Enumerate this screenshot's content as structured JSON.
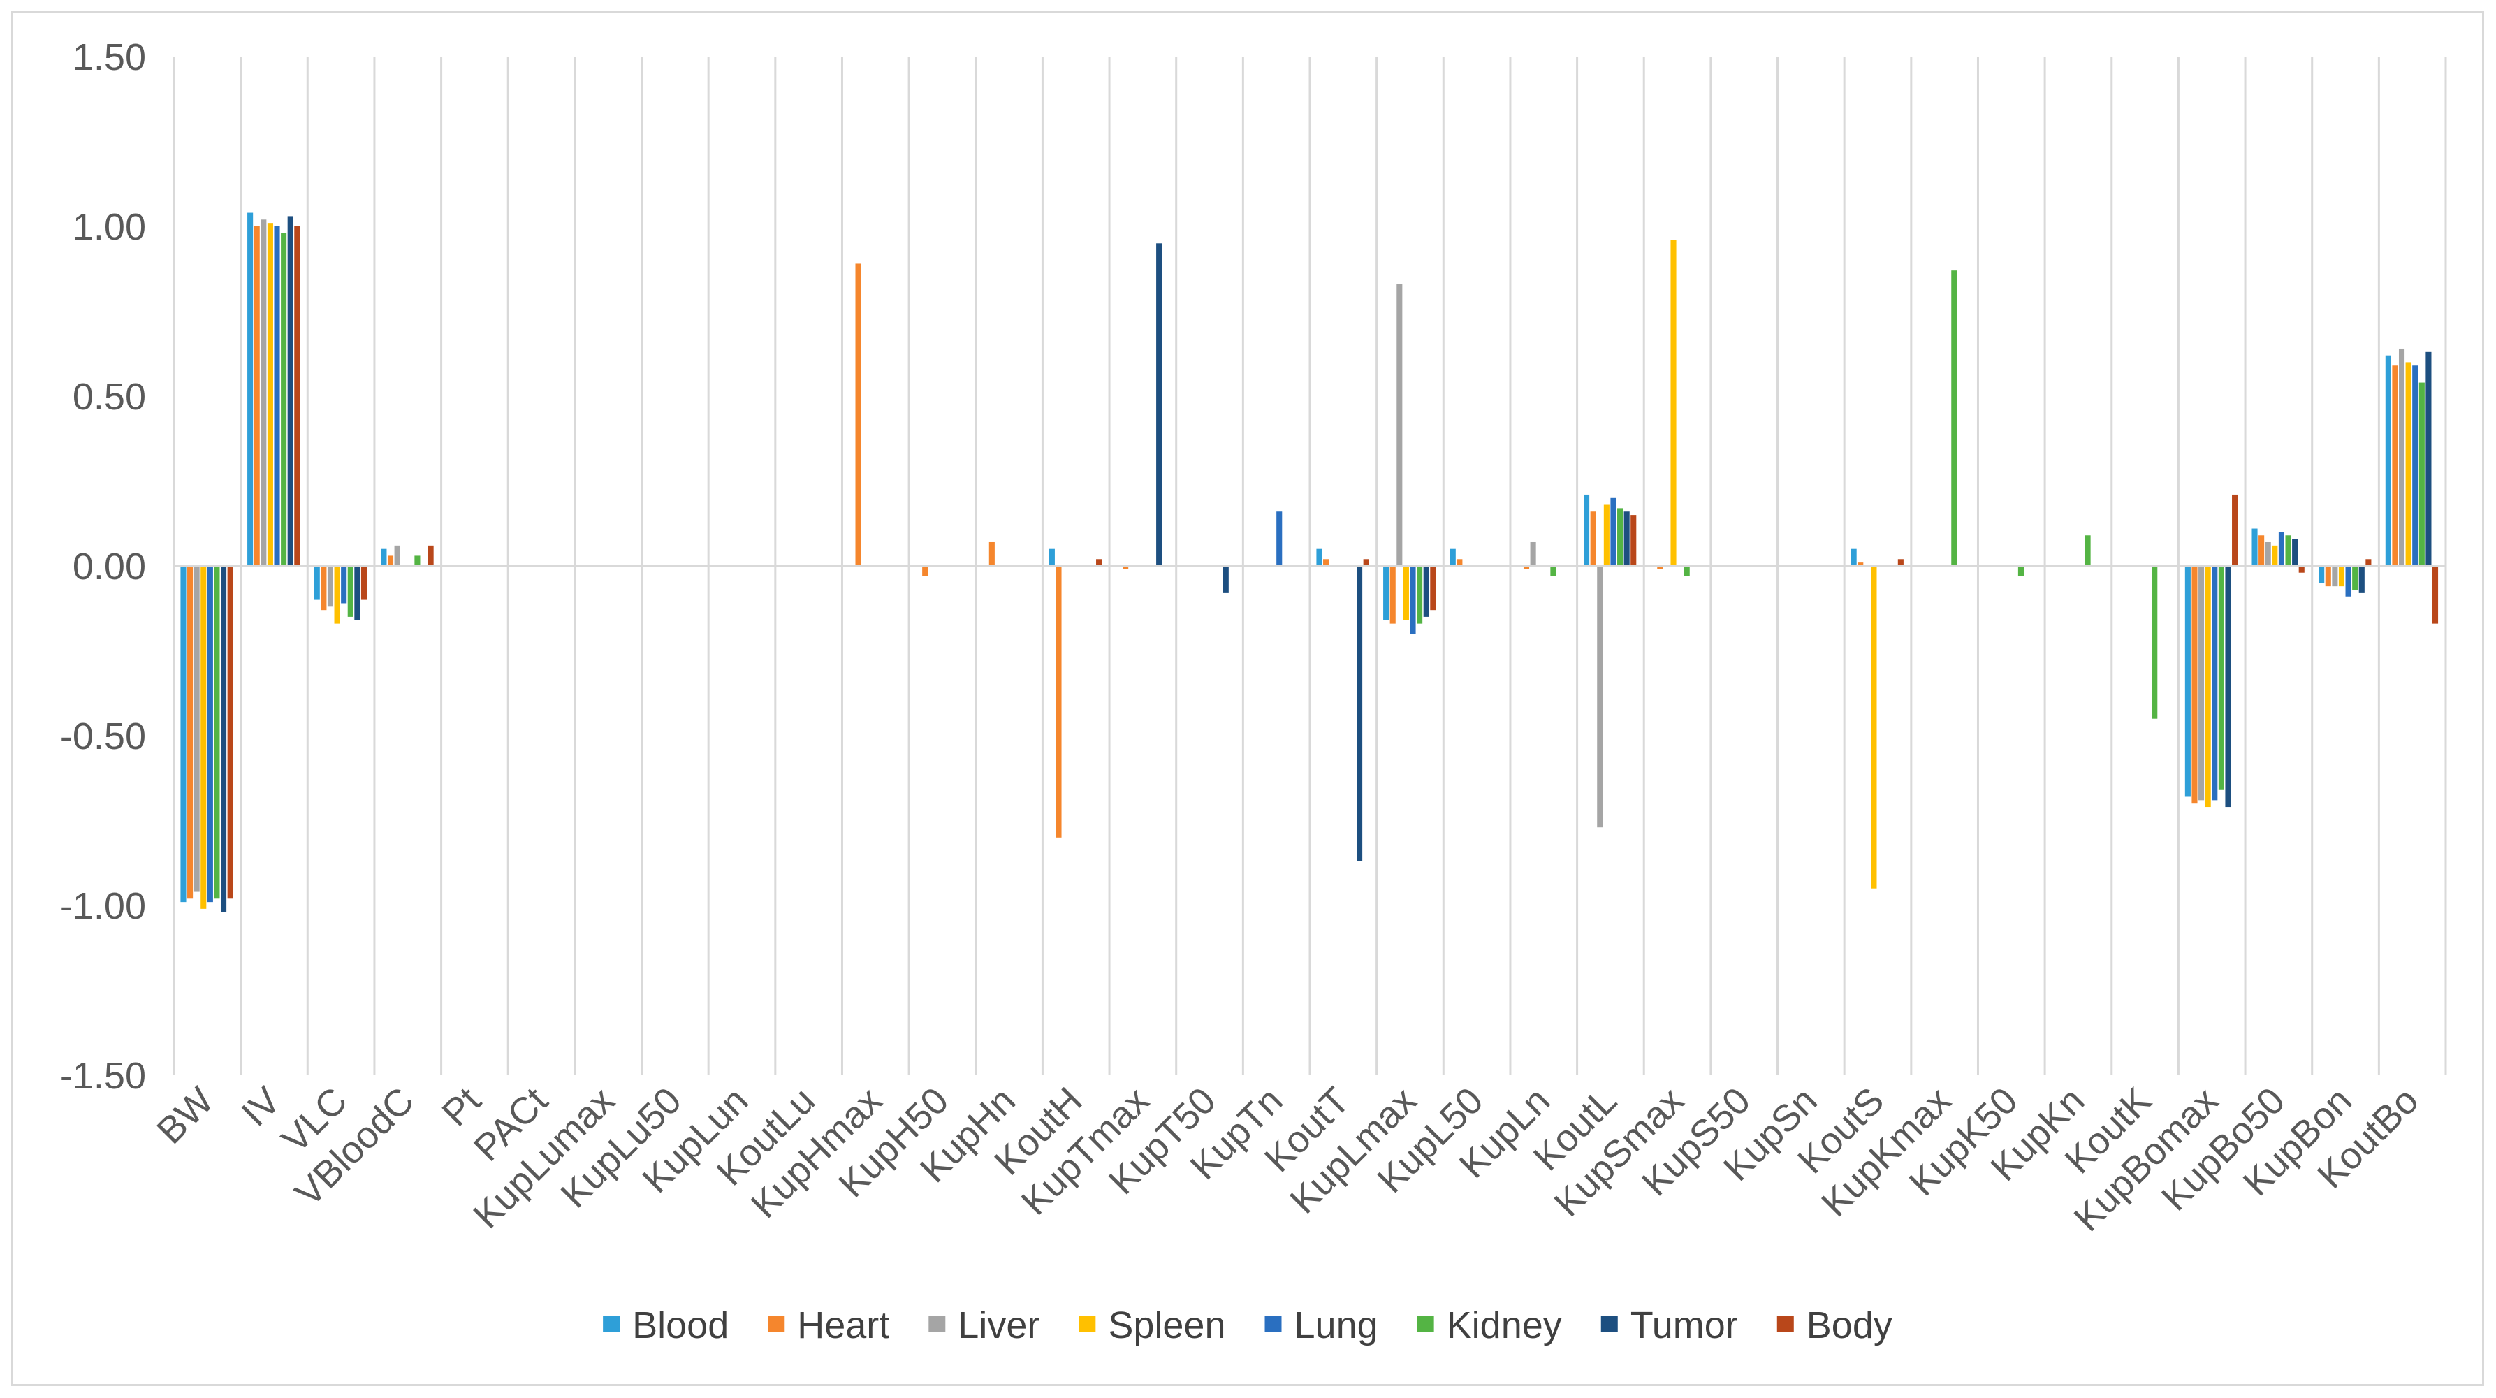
{
  "chart_data": {
    "type": "bar",
    "title": "",
    "xlabel": "",
    "ylabel": "",
    "ylim": [
      -1.5,
      1.5
    ],
    "yticks": [
      "1.50",
      "1.00",
      "0.50",
      "0.00",
      "-0.50",
      "-1.00",
      "-1.50"
    ],
    "ytick_values": [
      1.5,
      1.0,
      0.5,
      0.0,
      -0.5,
      -1.0,
      -1.5
    ],
    "grid": "vertical",
    "legend_position": "bottom",
    "categories": [
      "BW",
      "IV",
      "VLC",
      "VBloodC",
      "Pt",
      "PACt",
      "KupLumax",
      "KupLu50",
      "KupLun",
      "KoutLu",
      "KupHmax",
      "KupH50",
      "KupHn",
      "KoutH",
      "KupTmax",
      "KupT50",
      "KupTn",
      "KoutT",
      "KupLmax",
      "KupL50",
      "KupLn",
      "KoutL",
      "KupSmax",
      "KupS50",
      "KupSn",
      "KoutS",
      "KupKmax",
      "KupK50",
      "KupKn",
      "KoutK",
      "KupBomax",
      "KupBo50",
      "KupBon",
      "KoutBo"
    ],
    "series": [
      {
        "name": "Blood",
        "color": "#2e9fd8",
        "values": [
          -0.99,
          1.04,
          -0.1,
          0.05,
          0,
          0,
          0,
          0,
          0,
          0,
          0,
          0,
          0,
          0.05,
          0,
          0,
          0,
          0.05,
          -0.16,
          0.05,
          0,
          0.21,
          0,
          0,
          0,
          0.05,
          0,
          0,
          0,
          0,
          -0.68,
          0.11,
          -0.05,
          0.62
        ]
      },
      {
        "name": "Heart",
        "color": "#f5862d",
        "values": [
          -0.98,
          1.0,
          -0.13,
          0.03,
          0,
          0,
          0,
          0,
          0,
          0,
          0.89,
          -0.03,
          0.07,
          -0.8,
          -0.01,
          0,
          0,
          0.02,
          -0.17,
          0.02,
          -0.01,
          0.16,
          -0.01,
          0,
          0,
          0.01,
          0,
          0,
          0,
          0,
          -0.7,
          0.09,
          -0.06,
          0.59
        ]
      },
      {
        "name": "Liver",
        "color": "#a5a5a5",
        "values": [
          -0.96,
          1.02,
          -0.12,
          0.06,
          0,
          0,
          0,
          0,
          0,
          0,
          0,
          0,
          0,
          0,
          0,
          0,
          0,
          0,
          0.83,
          0,
          0.07,
          -0.77,
          0,
          0,
          0,
          0,
          0,
          0,
          0,
          0,
          -0.69,
          0.07,
          -0.06,
          0.64
        ]
      },
      {
        "name": "Spleen",
        "color": "#ffc000",
        "values": [
          -1.01,
          1.01,
          -0.17,
          0,
          0,
          0,
          0,
          0,
          0,
          0,
          0,
          0,
          0,
          0,
          0,
          0,
          0,
          0,
          -0.16,
          0,
          0,
          0.18,
          0.96,
          0,
          0,
          -0.95,
          0,
          0,
          0,
          0,
          -0.71,
          0.06,
          -0.06,
          0.6
        ]
      },
      {
        "name": "Lung",
        "color": "#2a6fc0",
        "values": [
          -0.99,
          1.0,
          -0.11,
          0,
          0,
          0,
          0,
          0,
          0,
          0,
          0,
          0,
          0,
          0,
          0,
          0,
          0.16,
          0,
          -0.2,
          0,
          0,
          0.2,
          0,
          0,
          0,
          0,
          0,
          0,
          0,
          0,
          -0.69,
          0.1,
          -0.09,
          0.59
        ]
      },
      {
        "name": "Kidney",
        "color": "#54b444",
        "values": [
          -0.98,
          0.98,
          -0.15,
          0.03,
          0,
          0,
          0,
          0,
          0,
          0,
          0,
          0,
          0,
          0,
          0,
          0,
          0,
          0,
          -0.17,
          0,
          -0.03,
          0.17,
          -0.03,
          0,
          0,
          0,
          0.87,
          -0.03,
          0.09,
          -0.45,
          -0.66,
          0.09,
          -0.07,
          0.54
        ]
      },
      {
        "name": "Tumor",
        "color": "#1d4f80",
        "values": [
          -1.02,
          1.03,
          -0.16,
          0,
          0,
          0,
          0,
          0,
          0,
          0,
          0,
          0,
          0,
          0,
          0.95,
          -0.08,
          0,
          -0.87,
          -0.15,
          0,
          0,
          0.16,
          0,
          0,
          0,
          0,
          0,
          0,
          0,
          0,
          -0.71,
          0.08,
          -0.08,
          0.63
        ]
      },
      {
        "name": "Body",
        "color": "#b9471a",
        "values": [
          -0.98,
          1.0,
          -0.1,
          0.06,
          0,
          0,
          0,
          0,
          0,
          0,
          0,
          0,
          0,
          0.02,
          0,
          0,
          0,
          0.02,
          -0.13,
          0,
          0,
          0.15,
          0,
          0,
          0,
          0.02,
          0,
          0,
          0,
          0,
          0.21,
          -0.02,
          0.02,
          -0.17
        ]
      }
    ]
  }
}
